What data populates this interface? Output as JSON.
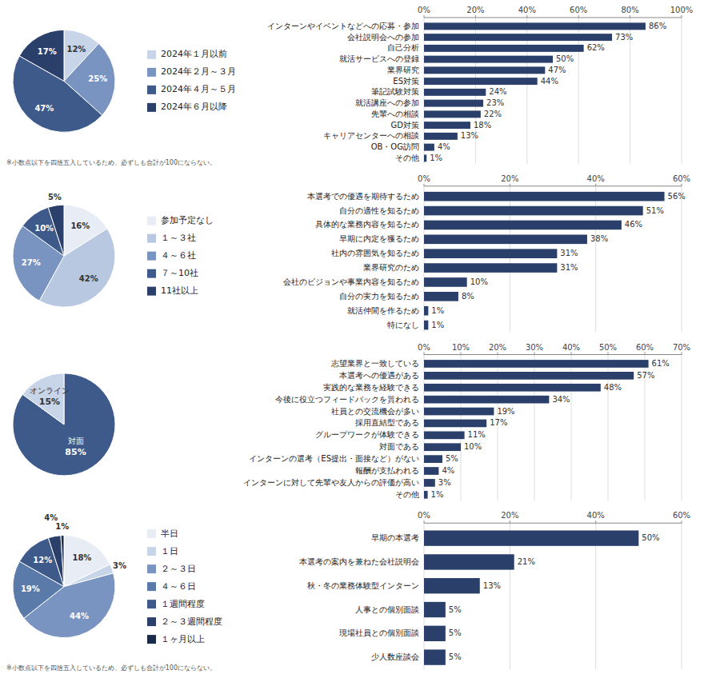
{
  "chart_data": [
    {
      "type": "pie",
      "categories": [
        "2024年１月以前",
        "2024年２月～３月",
        "2024年４月～５月",
        "2024年６月以降"
      ],
      "values": [
        12,
        25,
        47,
        17
      ],
      "value_labels": [
        "12%",
        "25%",
        "47%",
        "17%"
      ],
      "colors": [
        "#c8d4e8",
        "#7a94c1",
        "#3d5a8a",
        "#2b3f6b"
      ],
      "data_labels": true,
      "legend": "right",
      "annotations": [
        "※小数点以下を四捨五入しているため、必ずしも合計が100にならない。"
      ]
    },
    {
      "type": "pie",
      "categories": [
        "参加予定なし",
        "１～３社",
        "４～６社",
        "７～10社",
        "11社以上"
      ],
      "values": [
        16,
        42,
        27,
        10,
        5
      ],
      "value_labels": [
        "16%",
        "42%",
        "27%",
        "10%",
        "5%"
      ],
      "colors": [
        "#e8ecf4",
        "#b8c8e0",
        "#7a94c1",
        "#3d5a8a",
        "#2b3f6b"
      ],
      "data_labels": true,
      "legend": "right"
    },
    {
      "type": "pie",
      "categories": [
        "対面",
        "オンライン"
      ],
      "values": [
        85,
        15
      ],
      "value_labels": [
        "85%",
        "15%"
      ],
      "colors": [
        "#3d5a8a",
        "#c8d4e8"
      ],
      "data_labels": true
    },
    {
      "type": "pie",
      "categories": [
        "半日",
        "１日",
        "２～３日",
        "４～６日",
        "１週間程度",
        "２～３週間程度",
        "１ヶ月以上"
      ],
      "values": [
        18,
        3,
        44,
        19,
        12,
        4,
        1
      ],
      "value_labels": [
        "18%",
        "3%",
        "44%",
        "19%",
        "12%",
        "4%",
        "1%"
      ],
      "colors": [
        "#e8ecf4",
        "#c8d4e8",
        "#7a94c1",
        "#5a7aaa",
        "#3d5a8a",
        "#2b3f6b",
        "#1a2a4a"
      ],
      "data_labels": true,
      "legend": "right",
      "annotations": [
        "※小数点以下を四捨五入しているため、必ずしも合計が100にならない。"
      ]
    },
    {
      "type": "bar",
      "orientation": "horizontal",
      "categories": [
        "インターンやイベントなどへの応募・参加",
        "会社説明会への参加",
        "自己分析",
        "就活サービスへの登録",
        "業界研究",
        "ES対策",
        "筆記試験対策",
        "就活講座への参加",
        "先輩への相談",
        "GD対策",
        "キャリアセンターへの相談",
        "OB・OG訪問",
        "その他"
      ],
      "values": [
        86,
        73,
        62,
        50,
        47,
        44,
        24,
        23,
        22,
        18,
        13,
        4,
        1
      ],
      "value_labels": [
        "86%",
        "73%",
        "62%",
        "50%",
        "47%",
        "44%",
        "24%",
        "23%",
        "22%",
        "18%",
        "13%",
        "4%",
        "1%"
      ],
      "color": "#2b3f6b",
      "xlim": [
        0,
        100
      ],
      "xticks": [
        {
          "value": 0,
          "label": "0%"
        },
        {
          "value": 20,
          "label": "20%"
        },
        {
          "value": 40,
          "label": "40%"
        },
        {
          "value": 60,
          "label": "60%"
        },
        {
          "value": 80,
          "label": "80%"
        },
        {
          "value": 100,
          "label": "100%"
        }
      ],
      "grid": true,
      "data_labels": true
    },
    {
      "type": "bar",
      "orientation": "horizontal",
      "categories": [
        "本選考での優遇を期待するため",
        "自分の適性を知るため",
        "具体的な業務内容を知るため",
        "早期に内定を獲るため",
        "社内の雰囲気を知るため",
        "業界研究のため",
        "会社のビジョンや事業内容を知るため",
        "自分の実力を知るため",
        "就活仲間を作るため",
        "特になし"
      ],
      "values": [
        56,
        51,
        46,
        38,
        31,
        31,
        10,
        8,
        1,
        1
      ],
      "value_labels": [
        "56%",
        "51%",
        "46%",
        "38%",
        "31%",
        "31%",
        "10%",
        "8%",
        "1%",
        "1%"
      ],
      "color": "#2b3f6b",
      "xlim": [
        0,
        60
      ],
      "xticks": [
        {
          "value": 0,
          "label": "0%"
        },
        {
          "value": 20,
          "label": "20%"
        },
        {
          "value": 40,
          "label": "40%"
        },
        {
          "value": 60,
          "label": "60%"
        }
      ],
      "grid": true,
      "data_labels": true
    },
    {
      "type": "bar",
      "orientation": "horizontal",
      "categories": [
        "志望業界と一致している",
        "本選考への優遇がある",
        "実践的な業務を経験できる",
        "今後に役立つフィードバックを貰われる",
        "社員との交流機会が多い",
        "採用直結型である",
        "グループワークが体験できる",
        "対面である",
        "インターンの選考（ES提出・面接など）がない",
        "報酬が支払われる",
        "インターンに対して先輩や友人からの評価が高い",
        "その他"
      ],
      "values": [
        61,
        57,
        48,
        34,
        19,
        17,
        11,
        10,
        5,
        4,
        3,
        1
      ],
      "value_labels": [
        "61%",
        "57%",
        "48%",
        "34%",
        "19%",
        "17%",
        "11%",
        "10%",
        "5%",
        "4%",
        "3%",
        "1%"
      ],
      "color": "#2b3f6b",
      "xlim": [
        0,
        70
      ],
      "xticks": [
        {
          "value": 0,
          "label": "0%"
        },
        {
          "value": 10,
          "label": "10%"
        },
        {
          "value": 20,
          "label": "20%"
        },
        {
          "value": 30,
          "label": "30%"
        },
        {
          "value": 40,
          "label": "40%"
        },
        {
          "value": 50,
          "label": "50%"
        },
        {
          "value": 60,
          "label": "60%"
        },
        {
          "value": 70,
          "label": "70%"
        }
      ],
      "grid": true,
      "data_labels": true
    },
    {
      "type": "bar",
      "orientation": "horizontal",
      "categories": [
        "早期の本選考",
        "本選考の案内を兼ねた会社説明会",
        "秋・冬の業務体験型インターン",
        "人事との個別面談",
        "現場社員との個別面談",
        "少人数座談会"
      ],
      "values": [
        50,
        21,
        13,
        5,
        5,
        5
      ],
      "value_labels": [
        "50%",
        "21%",
        "13%",
        "5%",
        "5%",
        "5%"
      ],
      "color": "#2b3f6b",
      "xlim": [
        0,
        60
      ],
      "xticks": [
        {
          "value": 0,
          "label": "0%"
        },
        {
          "value": 20,
          "label": "20%"
        },
        {
          "value": 40,
          "label": "40%"
        },
        {
          "value": 60,
          "label": "60%"
        }
      ],
      "grid": true,
      "data_labels": true
    }
  ]
}
